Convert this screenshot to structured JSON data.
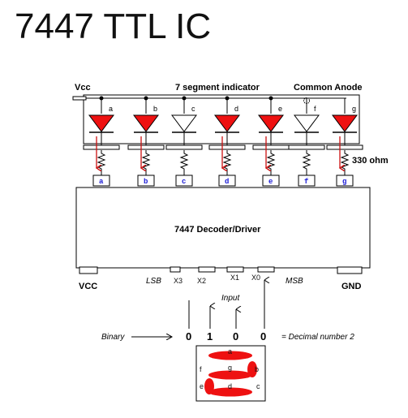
{
  "title": "7447 TTL IC",
  "header": {
    "vcc": "Vcc",
    "indicator": "7 segment indicator",
    "common": "Common Anode"
  },
  "resistor_label": "330 ohm",
  "segments": [
    {
      "letter": "a",
      "pin": "a",
      "on": true
    },
    {
      "letter": "b",
      "pin": "b",
      "on": true
    },
    {
      "letter": "c",
      "pin": "c",
      "on": false
    },
    {
      "letter": "d",
      "pin": "d",
      "on": true
    },
    {
      "letter": "e",
      "pin": "e",
      "on": true
    },
    {
      "letter": "f",
      "pin": "f",
      "on": false
    },
    {
      "letter": "g",
      "pin": "g",
      "on": true
    }
  ],
  "off_level": "1",
  "chip": {
    "name": "7447 Decoder/Driver",
    "vcc": "VCC",
    "gnd": "GND",
    "lsb": "LSB",
    "msb": "MSB",
    "inputs": [
      "X3",
      "X2",
      "X1",
      "X0"
    ]
  },
  "input_label": "Input",
  "binary_label": "Binary",
  "bits": [
    "0",
    "1",
    "0",
    "0"
  ],
  "result": "= Decimal number 2",
  "digit_letters": [
    "a",
    "f",
    "g",
    "b",
    "e",
    "d",
    "c"
  ],
  "colors": {
    "led_on": "#ee1111",
    "led_off": "#ffffff",
    "arrow": "#cc1111",
    "pin_text": "#1a1ad6",
    "pin_one": "#e83ad8"
  }
}
